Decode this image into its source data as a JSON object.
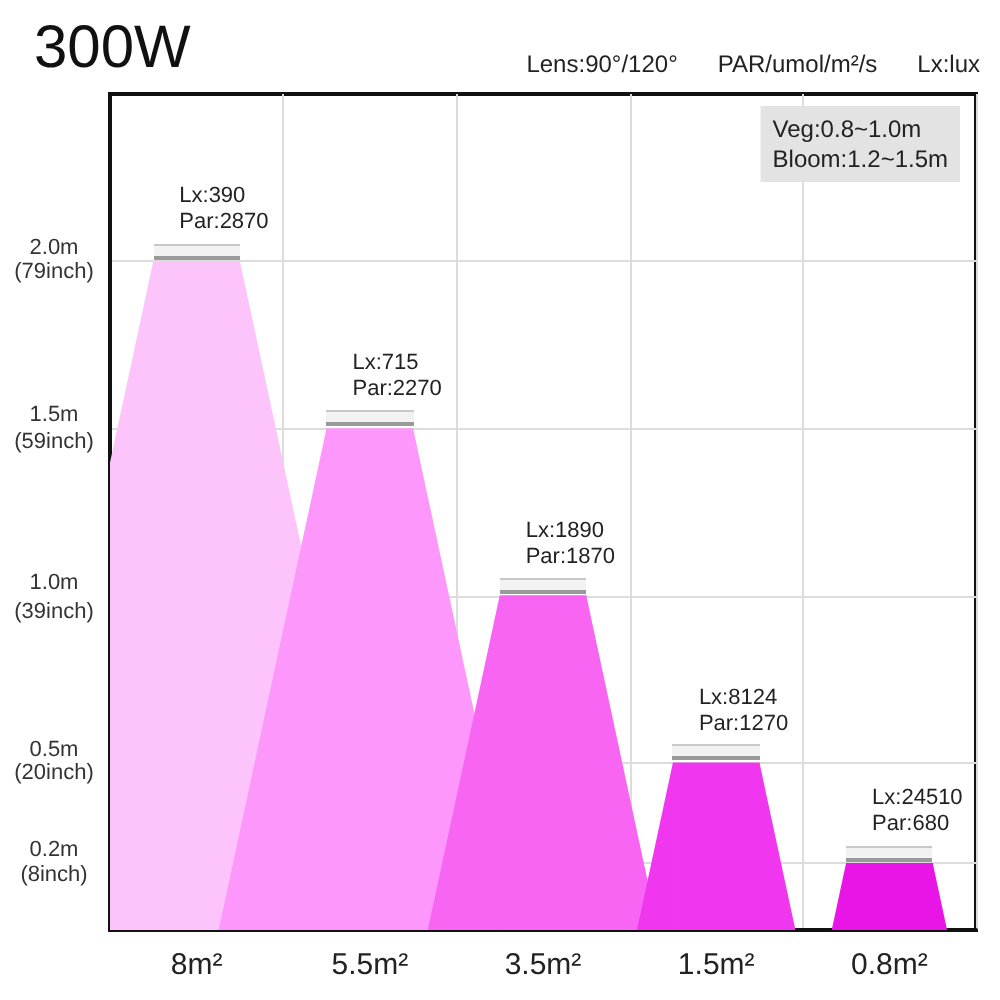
{
  "chart_data": {
    "type": "bar",
    "title": "300W",
    "annotations": [
      "Lens:90°/120°",
      "PAR/umol/m²/s",
      "Lx:lux",
      "Veg:0.8~1.0m\nBloom:1.2~1.5m"
    ],
    "categories": [
      "8m²",
      "5.5m²",
      "3.5m²",
      "1.5m²",
      "0.8m²"
    ],
    "values": [
      2.0,
      1.5,
      1.0,
      0.5,
      0.2
    ],
    "colors": [
      "#fcc4fa",
      "#fd97fc",
      "#f765f2",
      "#f136ef",
      "#e914e6"
    ],
    "value_labels": [
      "Lx:390\nPar:2870",
      "Lx:715\nPar:2270",
      "Lx:1890\nPar:1870",
      "Lx:8124\nPar:1270",
      "Lx:24510\nPar:680"
    ],
    "ylim": [
      0,
      2.5
    ],
    "yticks": [
      {
        "value": 0.2,
        "label": "0.2m"
      },
      {
        "value": 0.5,
        "label": "0.5m"
      },
      {
        "value": 1.0,
        "label": "1.0m"
      },
      {
        "value": 1.5,
        "label": "1.5m"
      },
      {
        "value": 2.0,
        "label": "2.0m"
      }
    ],
    "y2lim": [
      0,
      98.4
    ],
    "y2ticks": [
      {
        "value": 8,
        "label": "(8inch)"
      },
      {
        "value": 20,
        "label": "(20inch)"
      },
      {
        "value": 39,
        "label": "(39inch)"
      },
      {
        "value": 59,
        "label": "(59inch)"
      },
      {
        "value": 79,
        "label": "(79inch)"
      }
    ],
    "grid": true
  }
}
